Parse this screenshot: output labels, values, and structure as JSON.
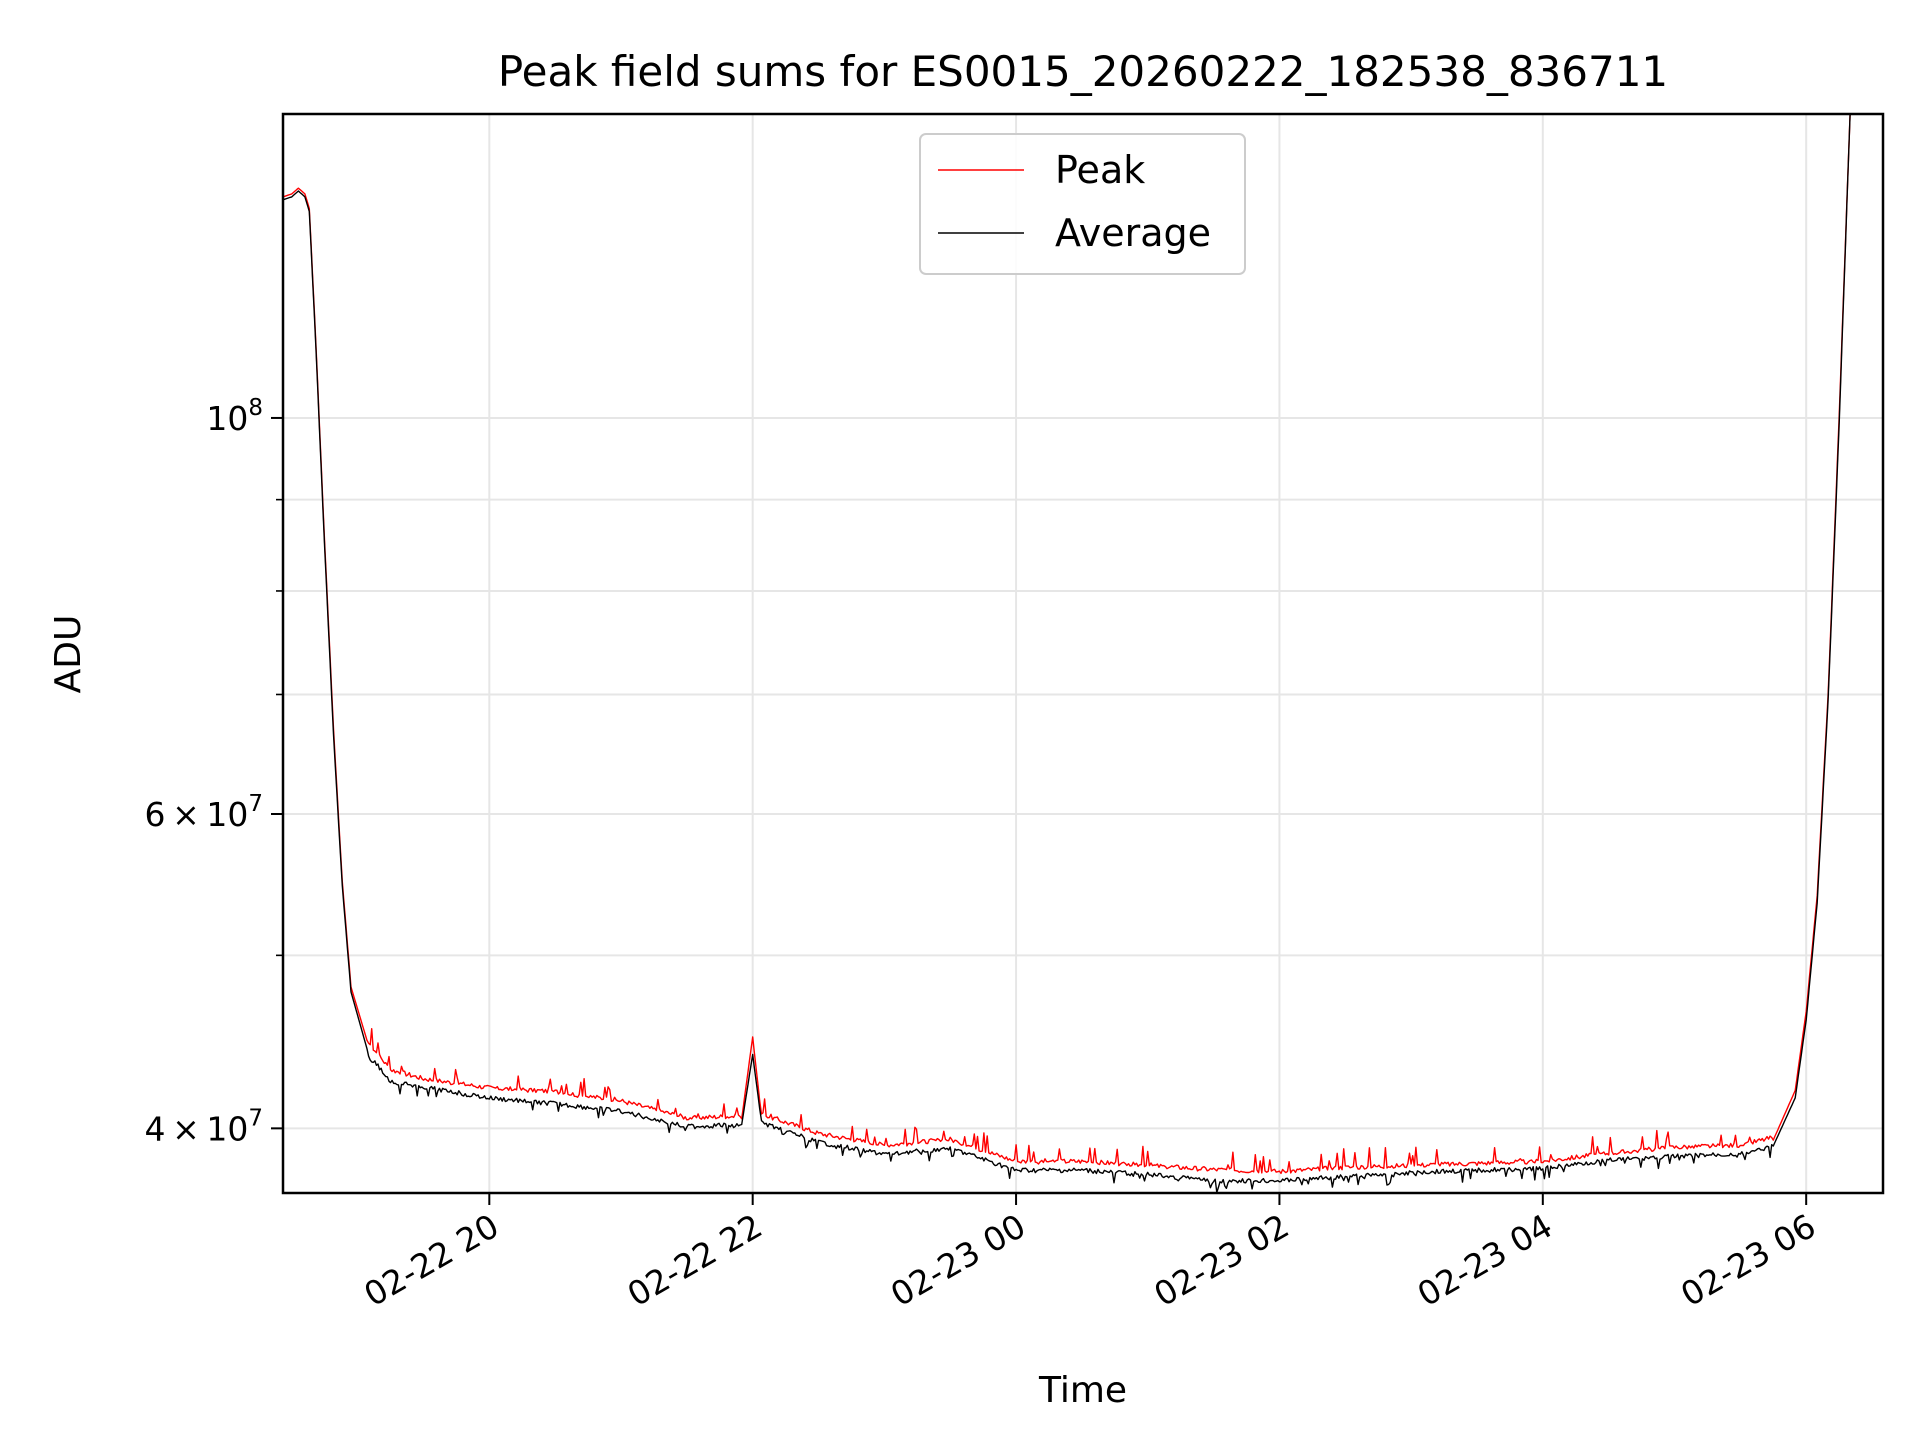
{
  "chart_data": {
    "type": "line",
    "title": "Peak field sums for ES0015_20260222_182538_836711",
    "xlabel": "Time",
    "ylabel": "ADU",
    "x_axis_type": "datetime",
    "xlim": [
      "2026-02-22 18:26",
      "2026-02-23 06:35"
    ],
    "ylim": [
      36800000,
      148000000
    ],
    "y_scale": "log",
    "grid": true,
    "legend_position": "top-center",
    "x_ticks": [
      {
        "value": "2026-02-22 20:00",
        "label": "02-22 20"
      },
      {
        "value": "2026-02-22 22:00",
        "label": "02-22 22"
      },
      {
        "value": "2026-02-23 00:00",
        "label": "02-23 00"
      },
      {
        "value": "2026-02-23 02:00",
        "label": "02-23 02"
      },
      {
        "value": "2026-02-23 04:00",
        "label": "02-23 04"
      },
      {
        "value": "2026-02-23 06:00",
        "label": "02-23 06"
      }
    ],
    "y_ticks": [
      {
        "value": 40000000,
        "base": "4",
        "exp": "7"
      },
      {
        "value": 60000000,
        "base": "6",
        "exp": "7"
      },
      {
        "value": 100000000,
        "base": "",
        "exp": "8"
      }
    ],
    "y_minor_ticks": [
      50000000,
      70000000,
      80000000,
      90000000
    ],
    "series": [
      {
        "name": "Peak",
        "color": "#ff0000",
        "points": [
          [
            "2026-02-22 18:26",
            133000000
          ],
          [
            "2026-02-22 18:30",
            133500000
          ],
          [
            "2026-02-22 18:33",
            134500000
          ],
          [
            "2026-02-22 18:36",
            133500000
          ],
          [
            "2026-02-22 18:38",
            131000000
          ],
          [
            "2026-02-22 18:41",
            110000000
          ],
          [
            "2026-02-22 18:45",
            85000000
          ],
          [
            "2026-02-22 18:49",
            67000000
          ],
          [
            "2026-02-22 18:53",
            55000000
          ],
          [
            "2026-02-22 18:57",
            48000000
          ],
          [
            "2026-02-22 19:05",
            44500000
          ],
          [
            "2026-02-22 19:15",
            43000000
          ],
          [
            "2026-02-22 19:30",
            42500000
          ],
          [
            "2026-02-22 20:00",
            42000000
          ],
          [
            "2026-02-22 20:30",
            41800000
          ],
          [
            "2026-02-22 21:00",
            41300000
          ],
          [
            "2026-02-22 21:30",
            40400000
          ],
          [
            "2026-02-22 21:55",
            40500000
          ],
          [
            "2026-02-22 22:00",
            45000000
          ],
          [
            "2026-02-22 22:04",
            40600000
          ],
          [
            "2026-02-22 22:30",
            39600000
          ],
          [
            "2026-02-22 23:00",
            39000000
          ],
          [
            "2026-02-22 23:30",
            39300000
          ],
          [
            "2026-02-23 00:00",
            38200000
          ],
          [
            "2026-02-23 00:30",
            38200000
          ],
          [
            "2026-02-23 01:00",
            38000000
          ],
          [
            "2026-02-23 01:30",
            37800000
          ],
          [
            "2026-02-23 02:00",
            37700000
          ],
          [
            "2026-02-23 02:30",
            37900000
          ],
          [
            "2026-02-23 03:00",
            38000000
          ],
          [
            "2026-02-23 03:30",
            38100000
          ],
          [
            "2026-02-23 04:00",
            38200000
          ],
          [
            "2026-02-23 04:30",
            38600000
          ],
          [
            "2026-02-23 05:00",
            38900000
          ],
          [
            "2026-02-23 05:30",
            39000000
          ],
          [
            "2026-02-23 05:45",
            39400000
          ],
          [
            "2026-02-23 05:55",
            42000000
          ],
          [
            "2026-02-23 06:00",
            46500000
          ],
          [
            "2026-02-23 06:05",
            54000000
          ],
          [
            "2026-02-23 06:10",
            70000000
          ],
          [
            "2026-02-23 06:15",
            100000000
          ],
          [
            "2026-02-23 06:20",
            148000000
          ]
        ]
      },
      {
        "name": "Average",
        "color": "#000000",
        "points": [
          [
            "2026-02-22 18:26",
            132500000
          ],
          [
            "2026-02-22 18:30",
            133000000
          ],
          [
            "2026-02-22 18:33",
            134000000
          ],
          [
            "2026-02-22 18:36",
            133000000
          ],
          [
            "2026-02-22 18:38",
            130500000
          ],
          [
            "2026-02-22 18:41",
            109500000
          ],
          [
            "2026-02-22 18:45",
            84500000
          ],
          [
            "2026-02-22 18:49",
            66500000
          ],
          [
            "2026-02-22 18:53",
            54700000
          ],
          [
            "2026-02-22 18:57",
            47700000
          ],
          [
            "2026-02-22 19:05",
            44000000
          ],
          [
            "2026-02-22 19:15",
            42500000
          ],
          [
            "2026-02-22 19:30",
            42200000
          ],
          [
            "2026-02-22 20:00",
            41600000
          ],
          [
            "2026-02-22 20:30",
            41300000
          ],
          [
            "2026-02-22 21:00",
            40900000
          ],
          [
            "2026-02-22 21:30",
            40100000
          ],
          [
            "2026-02-22 21:55",
            40200000
          ],
          [
            "2026-02-22 22:00",
            44000000
          ],
          [
            "2026-02-22 22:04",
            40300000
          ],
          [
            "2026-02-22 22:30",
            39300000
          ],
          [
            "2026-02-22 23:00",
            38700000
          ],
          [
            "2026-02-22 23:30",
            39000000
          ],
          [
            "2026-02-23 00:00",
            37900000
          ],
          [
            "2026-02-23 00:30",
            37900000
          ],
          [
            "2026-02-23 01:00",
            37700000
          ],
          [
            "2026-02-23 01:30",
            37400000
          ],
          [
            "2026-02-23 02:00",
            37400000
          ],
          [
            "2026-02-23 02:30",
            37600000
          ],
          [
            "2026-02-23 03:00",
            37800000
          ],
          [
            "2026-02-23 03:30",
            37900000
          ],
          [
            "2026-02-23 04:00",
            38000000
          ],
          [
            "2026-02-23 04:30",
            38400000
          ],
          [
            "2026-02-23 05:00",
            38600000
          ],
          [
            "2026-02-23 05:30",
            38700000
          ],
          [
            "2026-02-23 05:45",
            39100000
          ],
          [
            "2026-02-23 05:55",
            41600000
          ],
          [
            "2026-02-23 06:00",
            46000000
          ],
          [
            "2026-02-23 06:05",
            53500000
          ],
          [
            "2026-02-23 06:10",
            69500000
          ],
          [
            "2026-02-23 06:15",
            99000000
          ],
          [
            "2026-02-23 06:20",
            148000000
          ]
        ]
      }
    ]
  }
}
